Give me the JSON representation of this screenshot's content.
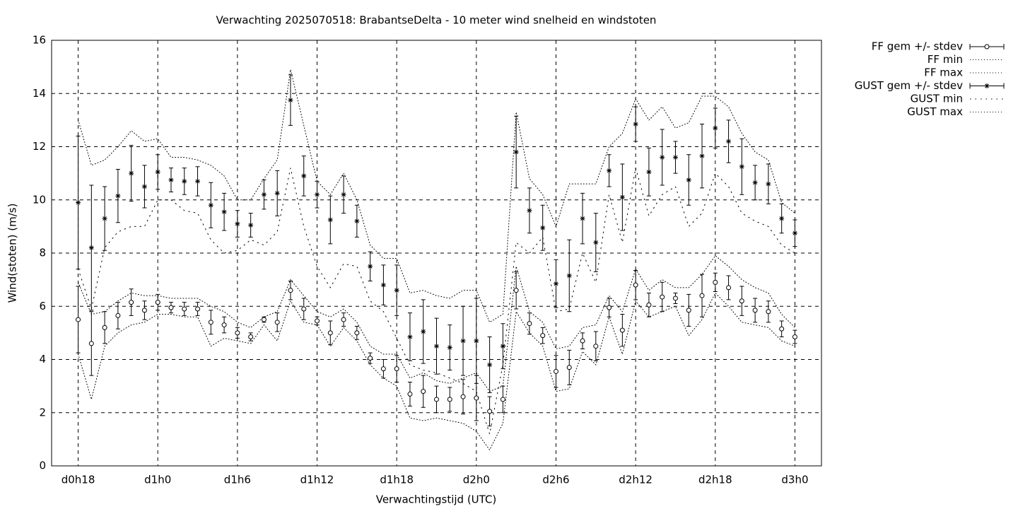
{
  "chart_data": {
    "type": "errorbar",
    "title": "Verwachting 2025070518: BrabantseDelta - 10 meter wind snelheid en windstoten",
    "xlabel": "Verwachtingstijd (UTC)",
    "ylabel": "Wind(stoten) (m/s)",
    "x": [
      18,
      19,
      20,
      21,
      22,
      23,
      24,
      25,
      26,
      27,
      28,
      29,
      30,
      31,
      32,
      33,
      34,
      35,
      36,
      37,
      38,
      39,
      40,
      41,
      42,
      43,
      44,
      45,
      46,
      47,
      48,
      49,
      50,
      51,
      52,
      53,
      54,
      55,
      56,
      57,
      58,
      59,
      60,
      61,
      62,
      63,
      64,
      65,
      66,
      67,
      68,
      69,
      70,
      71,
      72
    ],
    "xlim": [
      16,
      74
    ],
    "xticks": [
      {
        "value": 18,
        "label": "d0h18"
      },
      {
        "value": 24,
        "label": "d1h0"
      },
      {
        "value": 30,
        "label": "d1h6"
      },
      {
        "value": 36,
        "label": "d1h12"
      },
      {
        "value": 42,
        "label": "d1h18"
      },
      {
        "value": 48,
        "label": "d2h0"
      },
      {
        "value": 54,
        "label": "d2h6"
      },
      {
        "value": 60,
        "label": "d2h12"
      },
      {
        "value": 66,
        "label": "d2h18"
      },
      {
        "value": 72,
        "label": "d3h0"
      }
    ],
    "ylim": [
      0,
      16
    ],
    "yticks": [
      0,
      2,
      4,
      6,
      8,
      10,
      12,
      14,
      16
    ],
    "grid": true,
    "legend": "outside-right",
    "series": [
      {
        "name": "FF gem +/- stdev",
        "color": "#000000",
        "style": "errorbars",
        "marker": "circle",
        "values": [
          5.5,
          4.6,
          5.2,
          5.65,
          6.15,
          5.85,
          6.15,
          5.95,
          5.9,
          5.9,
          5.4,
          5.3,
          5.0,
          4.85,
          5.5,
          5.4,
          6.6,
          5.9,
          5.45,
          5.0,
          5.5,
          5.0,
          4.05,
          3.65,
          3.65,
          2.7,
          2.8,
          2.5,
          2.5,
          2.6,
          2.55,
          2.05,
          2.5,
          6.6,
          5.35,
          4.9,
          3.55,
          3.7,
          4.7,
          4.5,
          5.95,
          5.1,
          6.8,
          6.05,
          6.35,
          6.3,
          5.85,
          6.4,
          6.9,
          6.7,
          6.2,
          5.85,
          5.8,
          5.15,
          4.85
        ],
        "errors": [
          1.25,
          1.2,
          0.6,
          0.5,
          0.5,
          0.35,
          0.3,
          0.2,
          0.25,
          0.25,
          0.45,
          0.3,
          0.2,
          0.15,
          0.1,
          0.35,
          0.35,
          0.4,
          0.15,
          0.45,
          0.25,
          0.25,
          0.2,
          0.35,
          0.5,
          0.45,
          0.6,
          0.5,
          0.45,
          0.65,
          0.85,
          0.55,
          0.5,
          0.7,
          0.4,
          0.3,
          0.6,
          0.65,
          0.3,
          0.55,
          0.35,
          0.6,
          0.55,
          0.45,
          0.55,
          0.2,
          0.6,
          0.8,
          0.35,
          0.45,
          0.55,
          0.45,
          0.4,
          0.3,
          0.25
        ]
      },
      {
        "name": "FF min",
        "color": "#000000",
        "style": "dotted",
        "values": [
          4.2,
          2.5,
          4.5,
          5.0,
          5.3,
          5.4,
          5.7,
          5.7,
          5.6,
          5.6,
          4.5,
          4.8,
          4.7,
          4.6,
          5.3,
          4.7,
          6.2,
          5.4,
          5.3,
          4.5,
          5.2,
          4.7,
          3.8,
          3.3,
          3.0,
          1.8,
          1.7,
          1.8,
          1.7,
          1.6,
          1.3,
          0.6,
          1.6,
          5.8,
          5.0,
          4.5,
          2.8,
          2.9,
          4.3,
          3.8,
          5.6,
          4.2,
          6.2,
          5.6,
          5.8,
          6.0,
          4.9,
          5.5,
          6.5,
          6.0,
          5.4,
          5.3,
          5.2,
          4.7,
          4.5
        ]
      },
      {
        "name": "FF max",
        "color": "#000000",
        "style": "dotted",
        "values": [
          6.9,
          5.7,
          5.8,
          6.2,
          6.5,
          6.4,
          6.4,
          6.3,
          6.3,
          6.3,
          6.0,
          5.8,
          5.4,
          5.2,
          5.6,
          5.8,
          7.0,
          6.4,
          5.8,
          5.6,
          5.9,
          5.4,
          4.5,
          4.2,
          4.2,
          3.3,
          3.5,
          3.2,
          3.1,
          3.3,
          3.5,
          2.8,
          3.0,
          7.5,
          5.8,
          5.4,
          4.4,
          4.5,
          5.2,
          5.3,
          6.4,
          5.8,
          7.4,
          6.6,
          7.0,
          6.7,
          6.7,
          7.2,
          7.9,
          7.5,
          7.0,
          6.7,
          6.5,
          5.7,
          5.2
        ]
      },
      {
        "name": "GUST gem +/- stdev",
        "color": "#000000",
        "style": "errorbars",
        "marker": "star",
        "values": [
          9.9,
          8.2,
          9.3,
          10.15,
          11.0,
          10.5,
          11.05,
          10.75,
          10.7,
          10.7,
          9.8,
          9.55,
          9.1,
          9.05,
          10.2,
          10.25,
          13.75,
          10.9,
          10.2,
          9.25,
          10.2,
          9.2,
          7.5,
          6.8,
          6.6,
          4.85,
          5.05,
          4.5,
          4.45,
          4.7,
          4.7,
          3.8,
          4.5,
          11.8,
          9.6,
          8.95,
          6.85,
          7.15,
          9.3,
          8.4,
          11.1,
          10.1,
          12.85,
          11.05,
          11.6,
          11.6,
          10.75,
          11.65,
          12.7,
          12.2,
          11.25,
          10.65,
          10.6,
          9.3,
          8.75
        ],
        "errors": [
          2.5,
          2.35,
          1.2,
          1.0,
          1.05,
          0.8,
          0.65,
          0.45,
          0.5,
          0.55,
          0.85,
          0.7,
          0.5,
          0.45,
          0.55,
          0.85,
          0.95,
          0.75,
          0.5,
          0.9,
          0.7,
          0.6,
          0.55,
          0.75,
          0.95,
          0.9,
          1.2,
          1.05,
          0.85,
          1.3,
          1.6,
          1.05,
          0.85,
          1.35,
          0.85,
          0.85,
          0.9,
          1.35,
          0.95,
          1.1,
          0.6,
          1.25,
          0.65,
          0.9,
          1.05,
          0.6,
          0.95,
          1.2,
          0.75,
          0.8,
          1.05,
          0.65,
          0.75,
          0.55,
          0.5
        ]
      },
      {
        "name": "GUST min",
        "color": "#000000",
        "style": "dotted-wide",
        "values": [
          7.4,
          5.9,
          8.2,
          8.8,
          9.0,
          9.0,
          10.0,
          10.0,
          9.6,
          9.5,
          8.5,
          8.0,
          8.1,
          8.5,
          8.3,
          8.8,
          11.2,
          9.0,
          7.5,
          6.7,
          7.6,
          7.5,
          6.2,
          5.8,
          4.8,
          3.8,
          3.6,
          3.5,
          3.3,
          3.1,
          2.8,
          1.2,
          3.8,
          8.4,
          8.0,
          8.6,
          5.8,
          5.9,
          8.0,
          6.9,
          10.2,
          8.4,
          11.2,
          9.4,
          10.2,
          10.5,
          9.0,
          9.5,
          11.0,
          10.5,
          9.5,
          9.2,
          9.0,
          8.3,
          8.0
        ]
      },
      {
        "name": "GUST max",
        "color": "#000000",
        "style": "dotted",
        "values": [
          13.0,
          11.3,
          11.5,
          12.0,
          12.6,
          12.2,
          12.3,
          11.6,
          11.6,
          11.5,
          11.3,
          10.9,
          10.0,
          10.0,
          10.8,
          11.5,
          14.9,
          12.8,
          10.7,
          10.2,
          11.0,
          10.0,
          8.3,
          7.8,
          7.8,
          6.5,
          6.6,
          6.4,
          6.3,
          6.6,
          6.6,
          5.4,
          5.7,
          13.3,
          10.8,
          10.2,
          9.0,
          10.6,
          10.6,
          10.6,
          12.0,
          12.5,
          13.8,
          13.0,
          13.5,
          12.7,
          12.9,
          13.9,
          13.9,
          13.5,
          12.5,
          11.8,
          11.5,
          9.9,
          9.5
        ]
      }
    ]
  }
}
